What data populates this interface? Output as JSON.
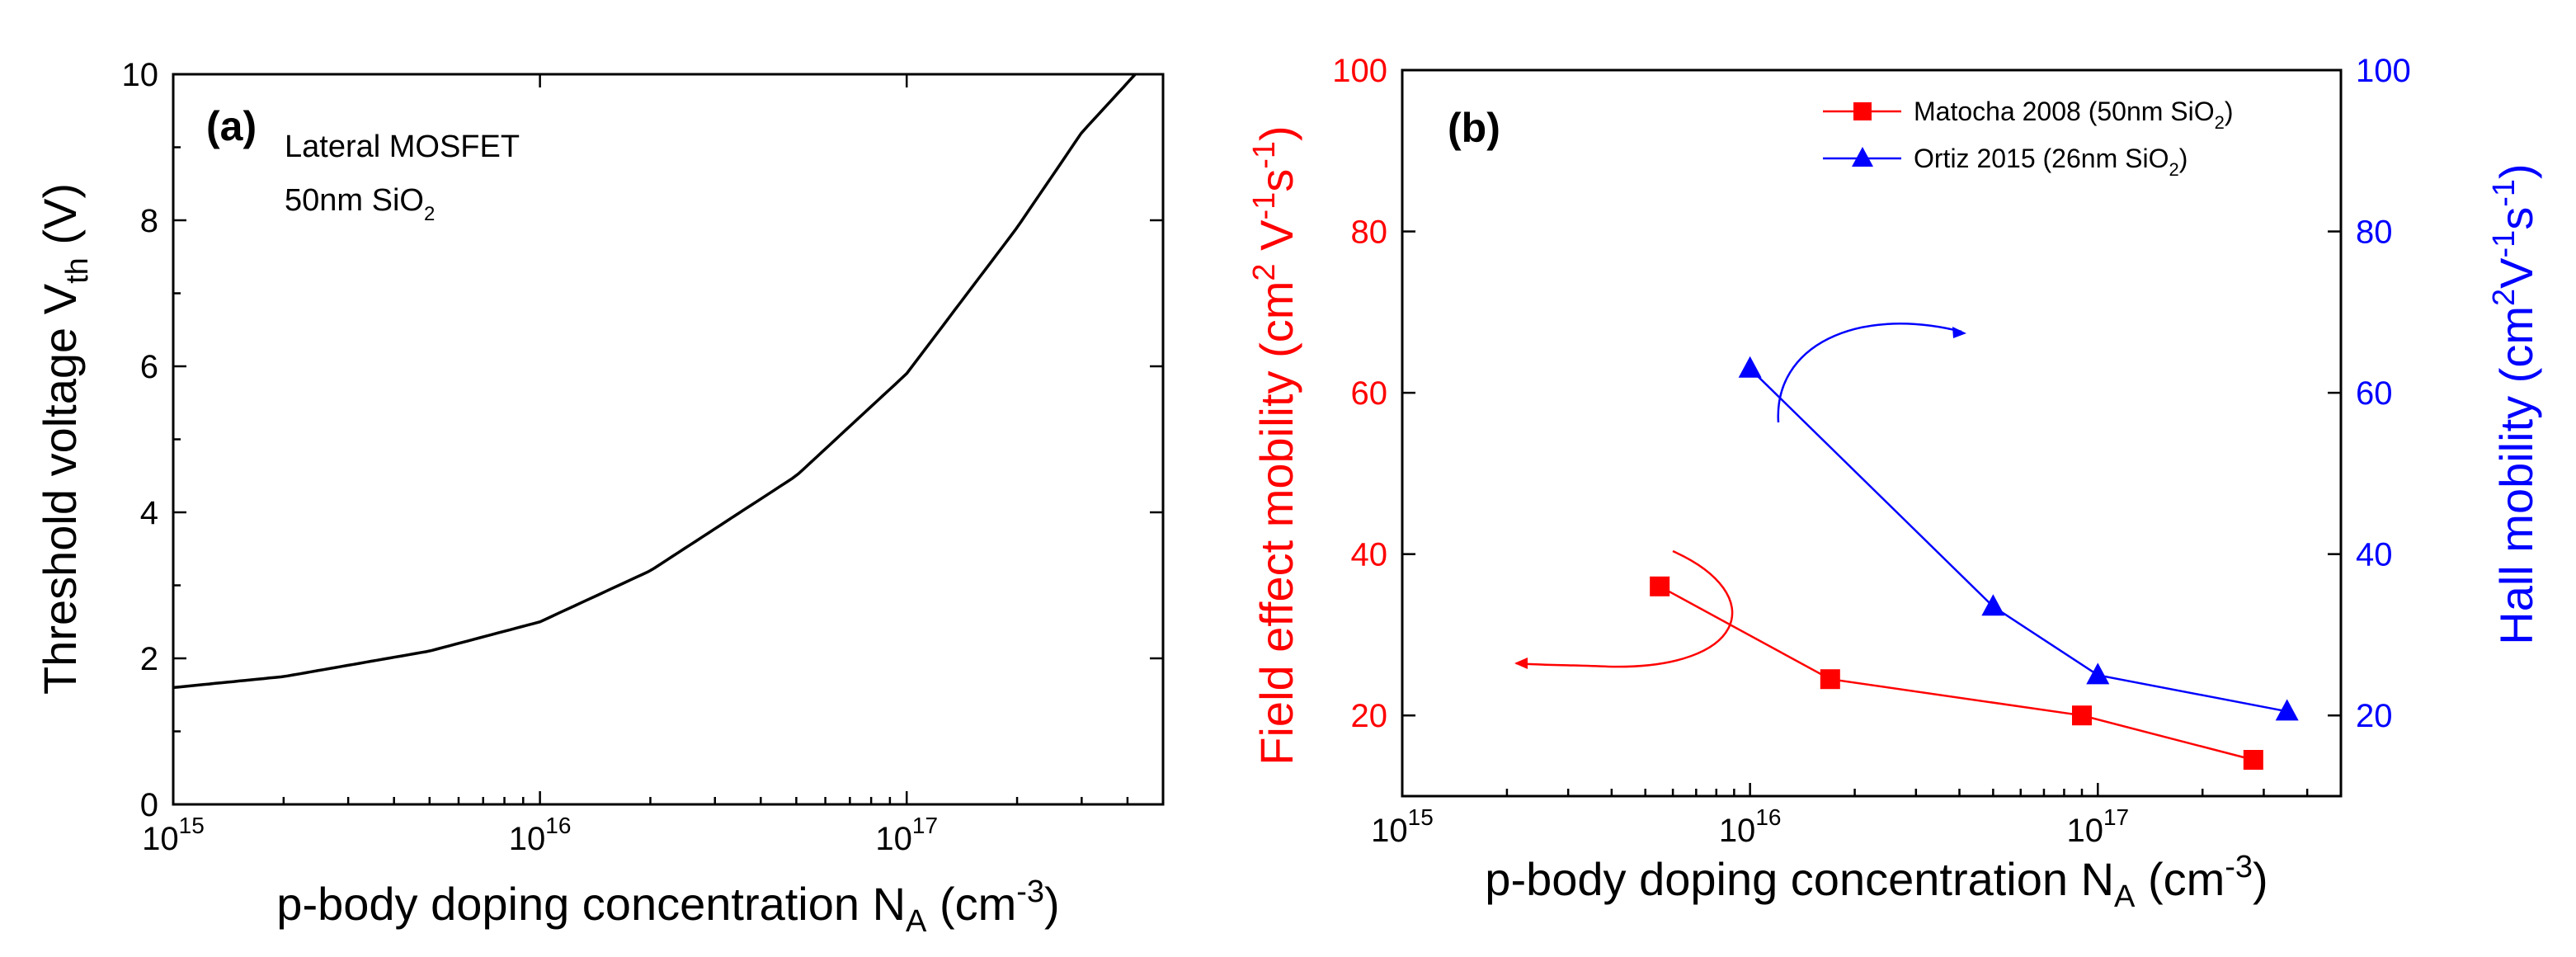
{
  "chart_data": [
    {
      "panel": "(a)",
      "type": "line",
      "annotation_lines": [
        "Lateral MOSFET",
        "50nm SiO"
      ],
      "annotation_sub": "2",
      "xlabel": "p-body doping concentration N",
      "xlabel_sub": "A",
      "xlabel_tail": " (cm",
      "xlabel_sup": "-3",
      "xlabel_end": ")",
      "ylabel": "Threshold voltage V",
      "ylabel_sub": "th",
      "ylabel_tail": " (V)",
      "xscale": "log",
      "xlim": [
        1000000000000000.0,
        5e+17
      ],
      "ylim": [
        0,
        10
      ],
      "x_ticks": [
        {
          "base": "10",
          "exp": "15",
          "value": 1000000000000000.0
        },
        {
          "base": "10",
          "exp": "16",
          "value": 1e+16
        },
        {
          "base": "10",
          "exp": "17",
          "value": 1e+17
        }
      ],
      "y_ticks": [
        "0",
        "2",
        "4",
        "6",
        "8",
        "10"
      ],
      "series": [
        {
          "name": "Vth",
          "color": "#000000",
          "x": [
            1000000000000000.0,
            2000000000000000.0,
            5000000000000000.0,
            1e+16,
            2e+16,
            5e+16,
            1e+17,
            2e+17,
            3e+17,
            4.2e+17
          ],
          "y": [
            1.6,
            1.75,
            2.1,
            2.5,
            3.2,
            4.5,
            5.9,
            7.9,
            9.2,
            10.0
          ]
        }
      ]
    },
    {
      "panel": "(b)",
      "type": "line",
      "xlabel": "p-body doping concentration N",
      "xlabel_sub": "A",
      "xlabel_tail": " (cm",
      "xlabel_sup": "-3",
      "xlabel_end": ")",
      "ylabel_left": "Field effect mobility (cm",
      "ylabel_left_sup1": "2",
      "ylabel_left_mid": " V",
      "ylabel_left_sup2": "-1",
      "ylabel_left_mid2": "s",
      "ylabel_left_sup3": "-1",
      "ylabel_left_end": ")",
      "ylabel_right": "Hall mobility (cm",
      "ylabel_right_sup1": "2",
      "ylabel_right_mid": "V",
      "ylabel_right_sup2": "-1",
      "ylabel_right_mid2": "s",
      "ylabel_right_sup3": "-1",
      "ylabel_right_end": ")",
      "xscale": "log",
      "xlim": [
        1000000000000000.0,
        5e+17
      ],
      "ylim_left": [
        10,
        100
      ],
      "ylim_right": [
        10,
        100
      ],
      "x_ticks": [
        {
          "base": "10",
          "exp": "15",
          "value": 1000000000000000.0
        },
        {
          "base": "10",
          "exp": "16",
          "value": 1e+16
        },
        {
          "base": "10",
          "exp": "17",
          "value": 1e+17
        }
      ],
      "y_ticks_left": [
        "20",
        "40",
        "60",
        "80",
        "100"
      ],
      "y_ticks_right": [
        "20",
        "40",
        "60",
        "80",
        "100"
      ],
      "left_color": "#ff0000",
      "right_color": "#0000ff",
      "series": [
        {
          "name": "Matocha 2008 (50nm SiO",
          "name_sub": "2",
          "name_end": ")",
          "axis": "left",
          "marker": "square",
          "color": "#ff0000",
          "x": [
            5500000000000000.0,
            1.7e+16,
            9e+16,
            2.8e+17
          ],
          "y": [
            36,
            24.5,
            20,
            14.5
          ]
        },
        {
          "name": "Ortiz 2015 (26nm SiO",
          "name_sub": "2",
          "name_end": ")",
          "axis": "right",
          "marker": "triangle",
          "color": "#0000ff",
          "x": [
            1e+16,
            5e+16,
            1e+17,
            3.5e+17
          ],
          "y": [
            63,
            33.5,
            25,
            20.5
          ]
        }
      ]
    }
  ]
}
